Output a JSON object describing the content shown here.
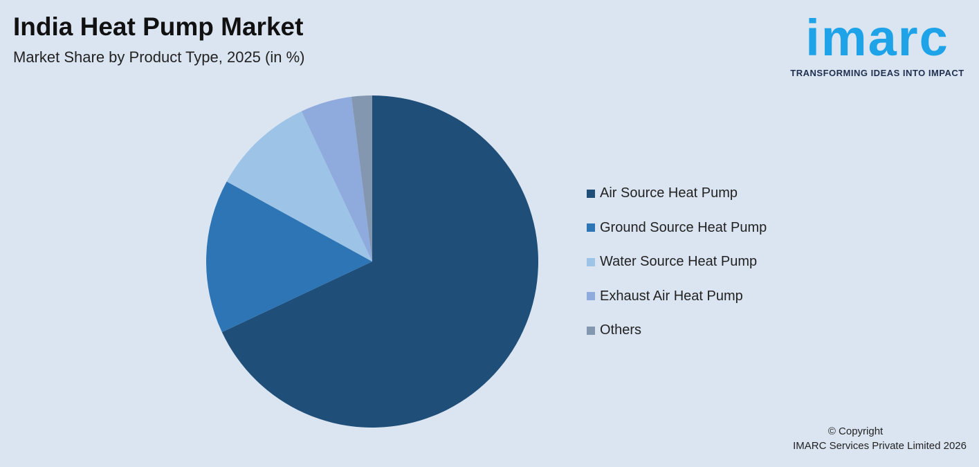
{
  "header": {
    "title": "India Heat Pump Market",
    "subtitle": "Market Share by Product Type, 2025 (in %)"
  },
  "logo": {
    "word": "imarc",
    "tagline": "TRANSFORMING IDEAS INTO IMPACT"
  },
  "footer": {
    "copyright": "© Copyright",
    "company": "IMARC Services Private Limited 2026"
  },
  "chart_data": {
    "type": "pie",
    "title": "India Heat Pump Market",
    "subtitle": "Market Share by Product Type, 2025 (in %)",
    "categories": [
      "Air Source Heat Pump",
      "Ground Source Heat Pump",
      "Water Source Heat Pump",
      "Exhaust Air Heat Pump",
      "Others"
    ],
    "values": [
      68,
      15,
      10,
      5,
      2
    ],
    "colors": [
      "#1f4e79",
      "#2e75b6",
      "#9dc3e6",
      "#8faadc",
      "#8497b0"
    ],
    "start_angle": "12 o'clock, clockwise",
    "legend_placement": "right"
  }
}
